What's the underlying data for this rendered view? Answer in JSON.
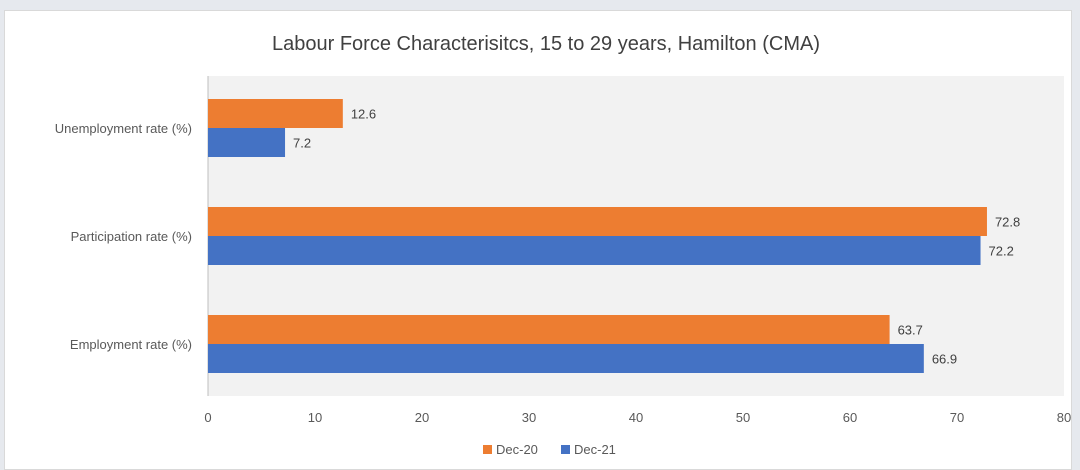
{
  "chart_data": {
    "type": "bar",
    "orientation": "horizontal",
    "title": "Labour Force Characterisitcs, 15 to 29 years, Hamilton (CMA)",
    "xlabel": "",
    "ylabel": "",
    "categories": [
      "Unemployment rate (%)",
      "Participation rate (%)",
      "Employment rate (%)"
    ],
    "series": [
      {
        "name": "Dec-20",
        "values": [
          12.6,
          72.8,
          63.7
        ],
        "color": "#ED7D31"
      },
      {
        "name": "Dec-21",
        "values": [
          7.2,
          72.2,
          66.9
        ],
        "color": "#4472C4"
      }
    ],
    "xlim": [
      0,
      80
    ],
    "xticks": [
      "0",
      "10",
      "20",
      "30",
      "40",
      "50",
      "60",
      "70",
      "80"
    ],
    "grid": false,
    "legend": "bottom",
    "plot_background": "#F2F2F2"
  }
}
